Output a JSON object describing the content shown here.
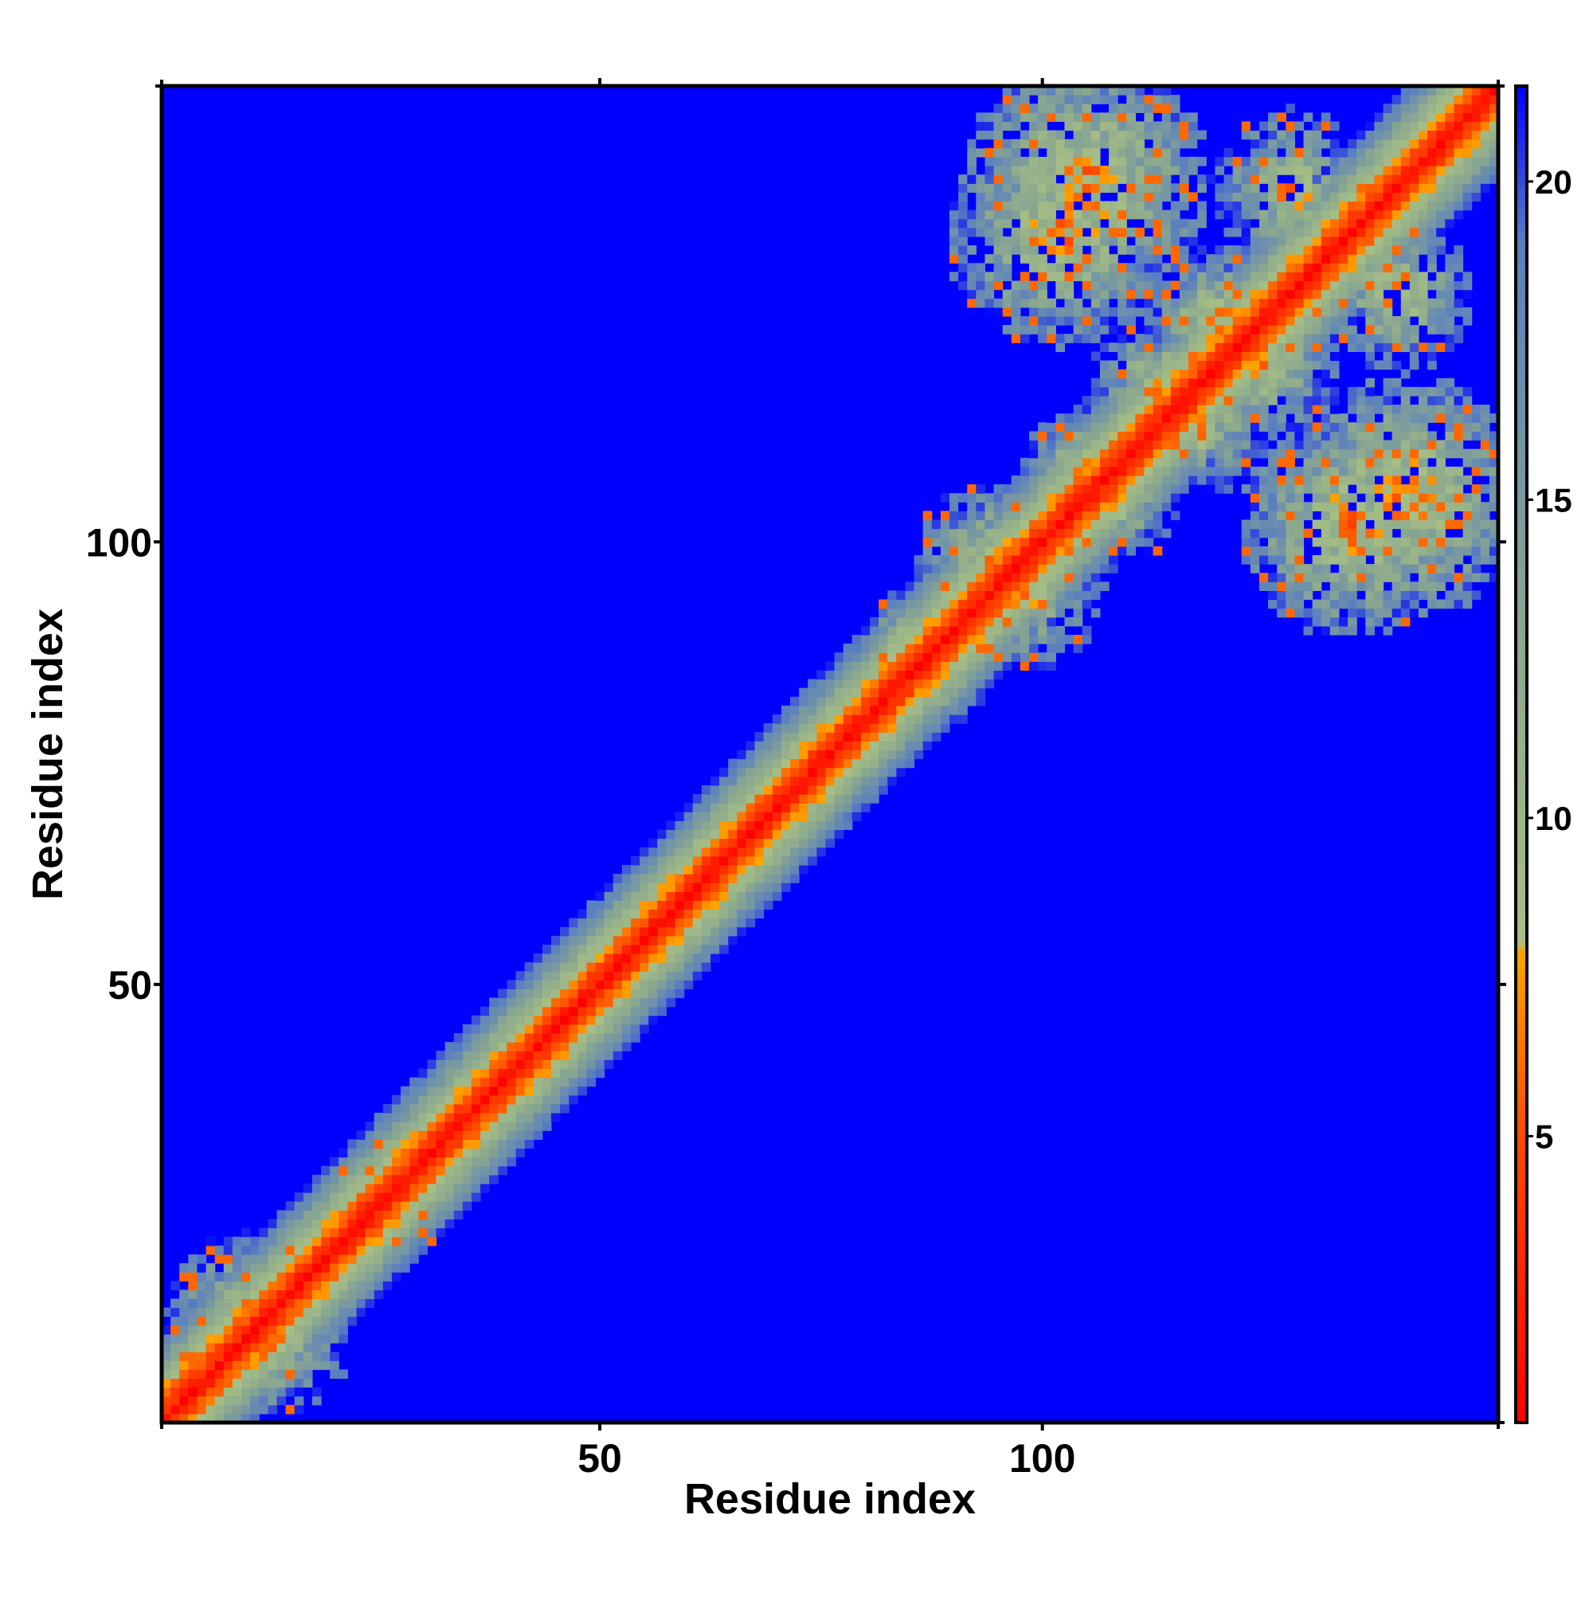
{
  "chart_data": {
    "type": "heatmap",
    "title": "",
    "xlabel": "Residue index",
    "ylabel": "Residue index",
    "n_residues": 151,
    "xlim": [
      1,
      151
    ],
    "ylim": [
      1,
      151
    ],
    "x_ticks": [
      {
        "value": 50,
        "label": "50"
      },
      {
        "value": 100,
        "label": "100"
      }
    ],
    "y_ticks": [
      {
        "value": 50,
        "label": "50"
      },
      {
        "value": 100,
        "label": "100"
      }
    ],
    "colorbar": {
      "range": [
        0.5,
        21.5
      ],
      "ticks": [
        {
          "value": 5,
          "label": "5"
        },
        {
          "value": 10,
          "label": "10"
        },
        {
          "value": 15,
          "label": "15"
        },
        {
          "value": 20,
          "label": "20"
        }
      ],
      "stops": [
        {
          "value": 0.5,
          "color": "#ff0000"
        },
        {
          "value": 5.0,
          "color": "#ff4a00"
        },
        {
          "value": 8.0,
          "color": "#ffa500"
        },
        {
          "value": 8.01,
          "color": "#a7bf84"
        },
        {
          "value": 13.0,
          "color": "#8aa78f"
        },
        {
          "value": 19.0,
          "color": "#5a7fc0"
        },
        {
          "value": 21.5,
          "color": "#0000ff"
        }
      ],
      "background_color": "#0000ff"
    },
    "description_regions": {
      "diagonal_band_halfwidth": 6,
      "contact_clusters": [
        {
          "center": [
            13,
            10
          ],
          "radius": 6
        },
        {
          "center": [
            28,
            26
          ],
          "radius": 3
        },
        {
          "center": [
            88,
            85
          ],
          "radius": 4
        },
        {
          "center": [
            97,
            95
          ],
          "radius": 7
        },
        {
          "center": [
            108,
            105
          ],
          "radius": 5
        },
        {
          "center": [
            135,
            102
          ],
          "radius": 10
        },
        {
          "center": [
            118,
            113
          ],
          "radius": 5
        },
        {
          "center": [
            105,
            141
          ],
          "radius": 11
        },
        {
          "center": [
            125,
            120
          ],
          "radius": 6
        },
        {
          "center": [
            140,
            128
          ],
          "radius": 6
        }
      ]
    }
  }
}
